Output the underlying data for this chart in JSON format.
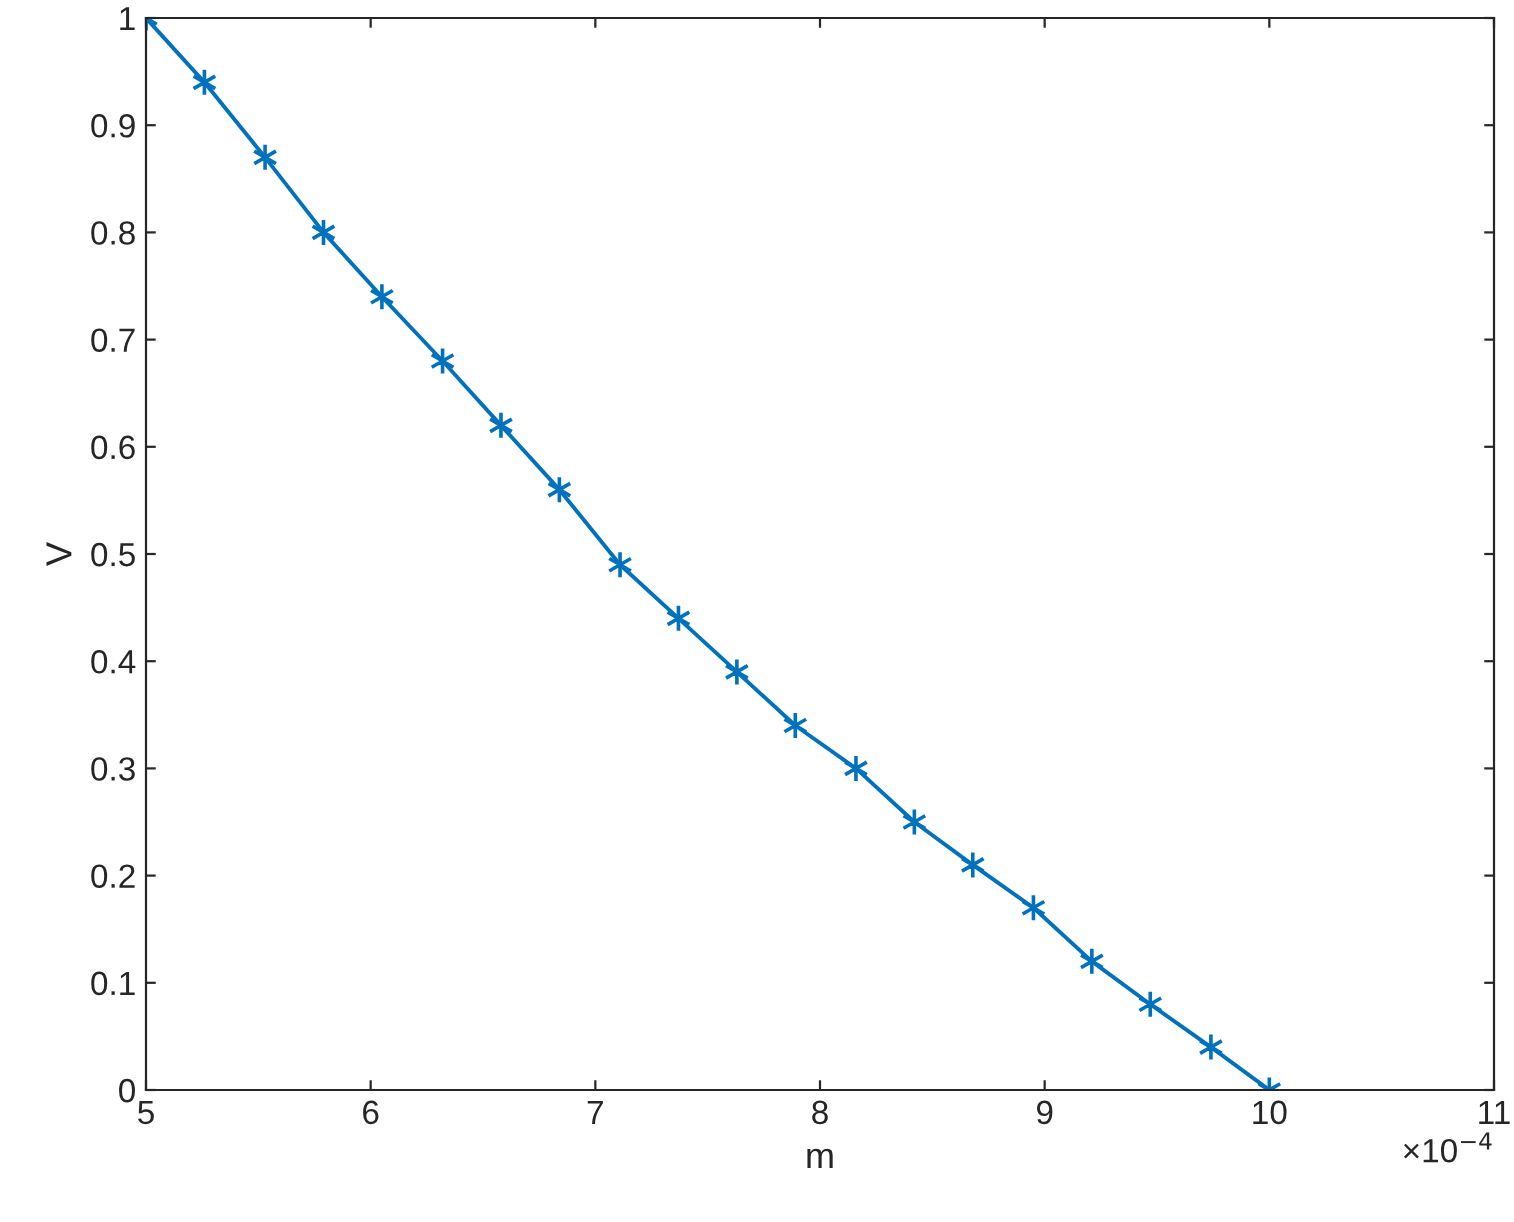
{
  "chart_data": {
    "type": "line",
    "xlabel": "m",
    "ylabel": "V",
    "x": [
      5,
      5.26,
      5.53,
      5.79,
      6.05,
      6.32,
      6.58,
      6.84,
      7.11,
      7.37,
      7.63,
      7.89,
      8.16,
      8.42,
      8.68,
      8.95,
      9.21,
      9.47,
      9.74,
      10
    ],
    "series": [
      {
        "color": "#0072bd",
        "values": [
          1,
          0.94,
          0.87,
          0.8,
          0.74,
          0.68,
          0.62,
          0.56,
          0.49,
          0.44,
          0.39,
          0.34,
          0.3,
          0.25,
          0.21,
          0.17,
          0.12,
          0.08,
          0.04,
          0
        ]
      }
    ],
    "xlim": [
      5,
      11
    ],
    "xticks": [
      5,
      6,
      7,
      8,
      9,
      10,
      11
    ],
    "ylim": [
      0,
      1
    ],
    "yticks": [
      0,
      0.1,
      0.2,
      0.3,
      0.4,
      0.5,
      0.6,
      0.7,
      0.8,
      0.9,
      1
    ],
    "annotations": [
      "×10$^{−4}$"
    ],
    "marker": "cross",
    "line_style": "solid",
    "grid": false,
    "legend": false
  }
}
